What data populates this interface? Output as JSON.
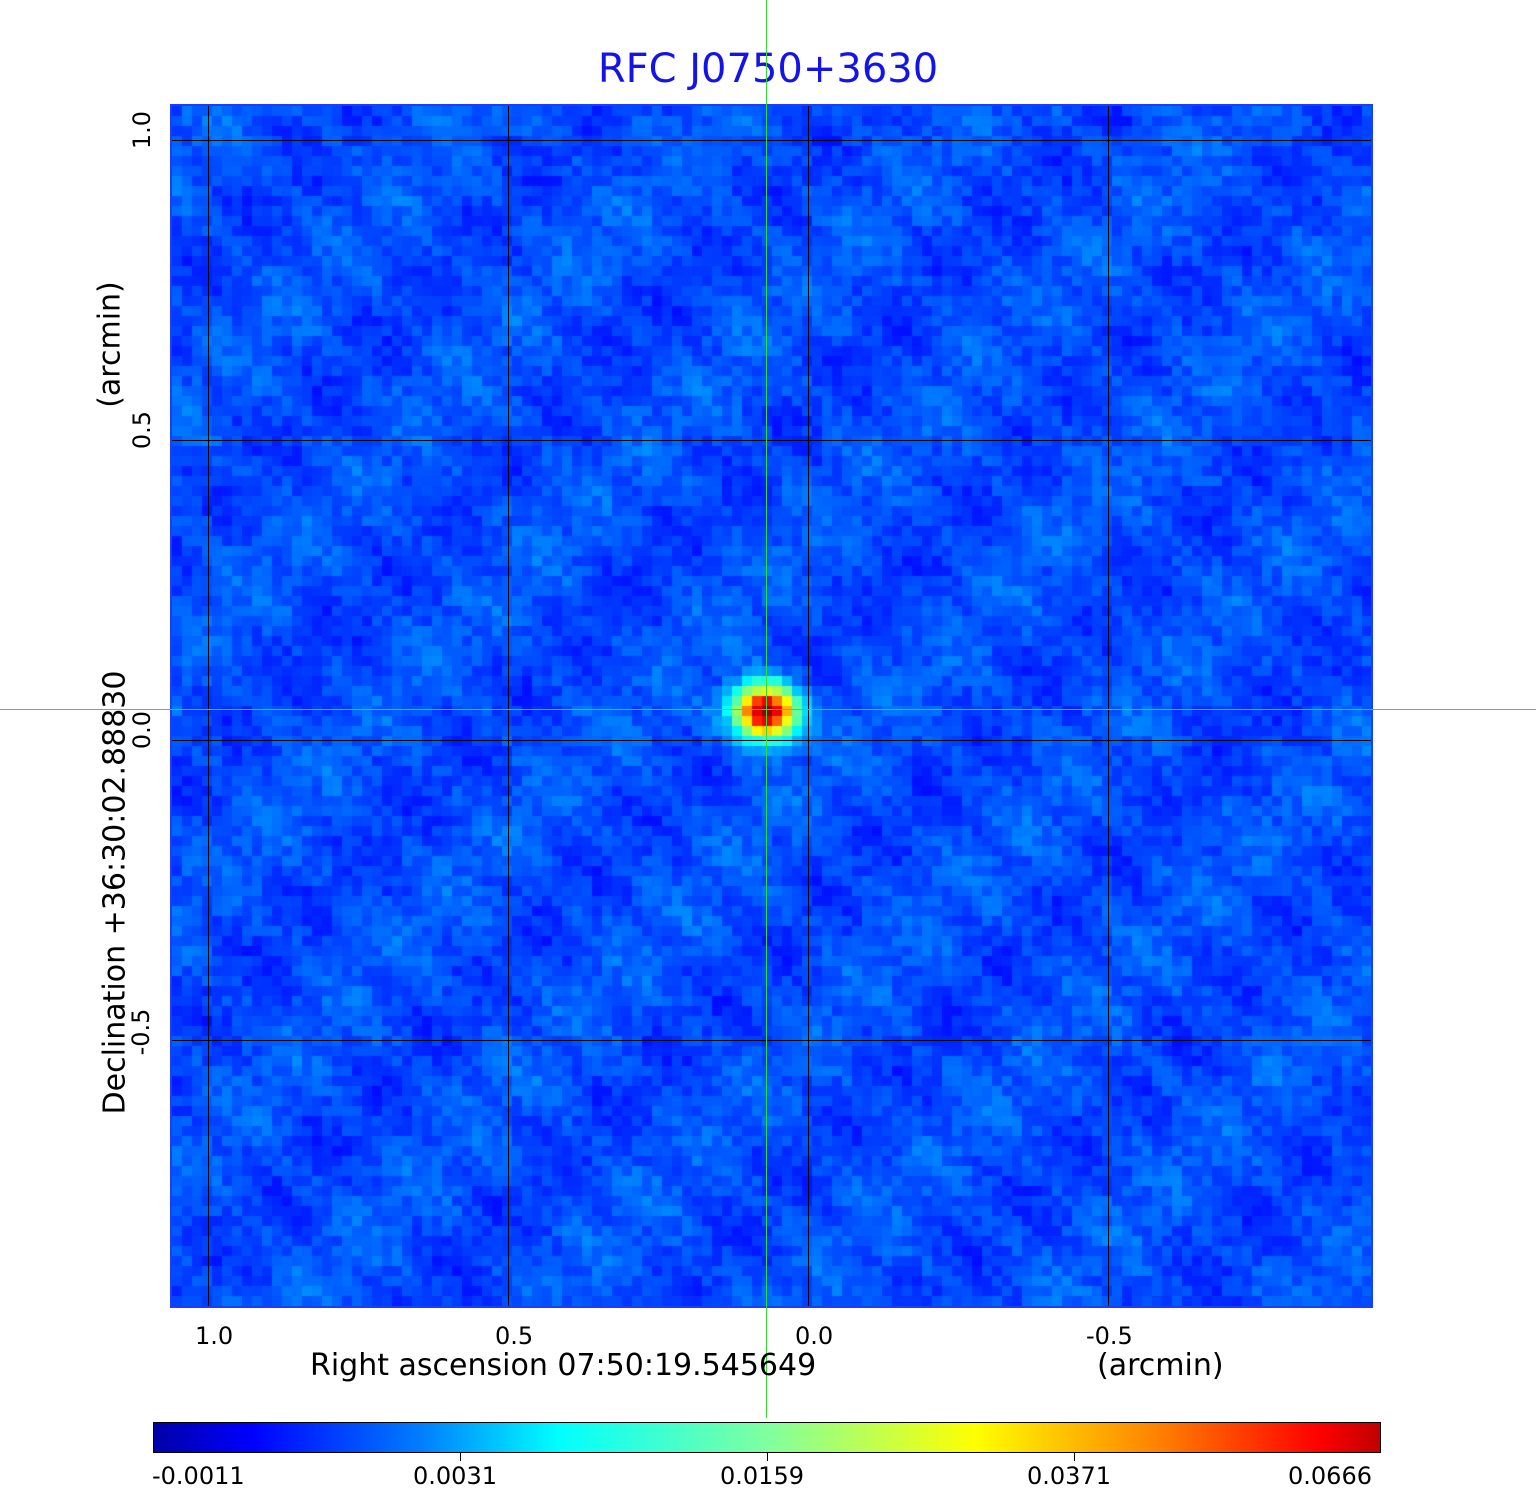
{
  "chart_data": {
    "type": "heatmap",
    "title": "RFC J0750+3630",
    "xlabel": "Right ascension  07:50:19.545649",
    "xunit": "(arcmin)",
    "ylabel": "Declination  +36:30:02.88830",
    "yunit": "(arcmin)",
    "xlim": [
      1.06,
      -0.94
    ],
    "ylim": [
      -0.94,
      1.06
    ],
    "x_direction": "decreasing to the right",
    "x_ticks": [
      "1.0",
      "0.5",
      "0.0",
      "-0.5"
    ],
    "y_ticks": [
      "1.0",
      "0.5",
      "0.0",
      "-0.5"
    ],
    "grid": true,
    "colormap": "jet",
    "colorbar": {
      "placement": "bottom",
      "ticks": [
        "-0.0011",
        "0.0031",
        "0.0159",
        "0.0371",
        "0.0666"
      ],
      "range": [
        -0.0011,
        0.0666
      ]
    },
    "source": {
      "x": 0.07,
      "y": 0.05,
      "peak": 0.0666
    },
    "crosshair": {
      "x": 0.07,
      "y": 0.05,
      "color": "#33dd33"
    },
    "background_level": 0.0
  }
}
